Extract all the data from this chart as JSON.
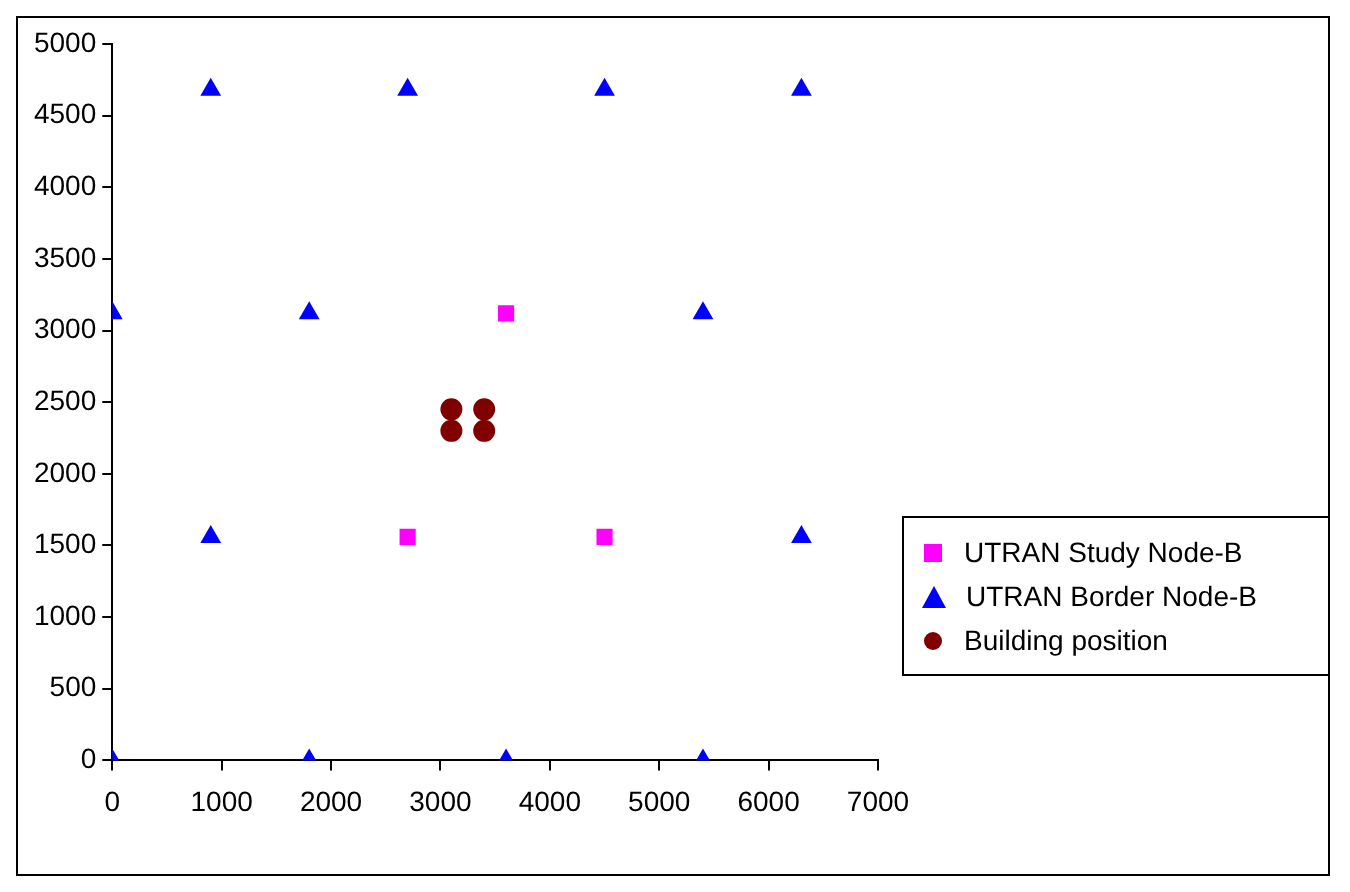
{
  "chart_data": {
    "type": "scatter",
    "xlim": [
      0,
      7000
    ],
    "xticks": [
      0,
      1000,
      2000,
      3000,
      4000,
      5000,
      6000,
      7000
    ],
    "ylim": [
      0,
      5000
    ],
    "yticks": [
      0,
      500,
      1000,
      1500,
      2000,
      2500,
      3000,
      3500,
      4000,
      4500,
      5000
    ],
    "grid": false,
    "legend": "right",
    "series": [
      {
        "name": "UTRAN Study Node-B",
        "color": "#ff00ff",
        "marker": "square",
        "x": [
          2700,
          4500,
          3600
        ],
        "values": [
          1560,
          1560,
          3120
        ]
      },
      {
        "name": "UTRAN Border Node-B",
        "color": "#0000ff",
        "marker": "triangle",
        "x": [
          0,
          1800,
          3600,
          5400,
          900,
          6300,
          0,
          1800,
          5400,
          900,
          2700,
          4500,
          6300
        ],
        "values": [
          0,
          0,
          0,
          0,
          1560,
          1560,
          3120,
          3120,
          3120,
          4680,
          4680,
          4680,
          4680
        ]
      },
      {
        "name": "Building position",
        "color": "#800000",
        "marker": "circle",
        "x": [
          3100,
          3400,
          3100,
          3400
        ],
        "values": [
          2300,
          2300,
          2450,
          2450
        ]
      }
    ]
  }
}
